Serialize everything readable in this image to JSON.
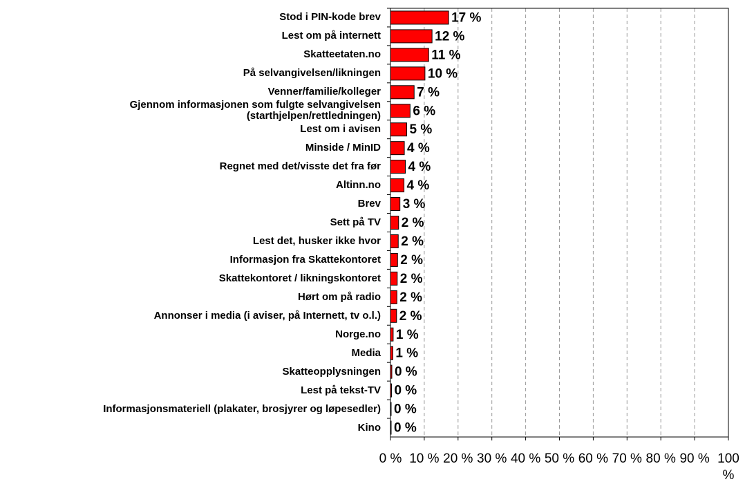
{
  "chart_data": {
    "type": "barh",
    "categories": [
      "Stod i PIN-kode brev",
      "Lest om på internett",
      "Skatteetaten.no",
      "På selvangivelsen/likningen",
      "Venner/familie/kolleger",
      "Gjennom informasjonen som fulgte selvangivelsen (starthjelpen/rettledningen)",
      "Lest om i avisen",
      "Minside / MinID",
      "Regnet med det/visste det fra før",
      "Altinn.no",
      "Brev",
      "Sett på TV",
      "Lest det, husker ikke hvor",
      "Informasjon fra Skattekontoret",
      "Skattekontoret / likningskontoret",
      "Hørt om på radio",
      "Annonser i media (i aviser, på Internett, tv o.l.)",
      "Norge.no",
      "Media",
      "Skatteopplysningen",
      "Lest på tekst-TV",
      "Informasjonsmateriell (plakater, brosjyrer og løpesedler)",
      "Kino"
    ],
    "values": [
      17.2,
      12.3,
      11.3,
      10.2,
      7.0,
      5.8,
      4.8,
      4.1,
      4.4,
      4.0,
      2.8,
      2.4,
      2.3,
      2.1,
      2.0,
      1.9,
      1.8,
      0.8,
      0.7,
      0.4,
      0.3,
      0.2,
      0.2
    ],
    "value_labels": [
      "17 %",
      "12 %",
      "11 %",
      "10 %",
      "7 %",
      "6 %",
      "5 %",
      "4 %",
      "4 %",
      "4 %",
      "3 %",
      "2 %",
      "2 %",
      "2 %",
      "2 %",
      "2 %",
      "2 %",
      "1 %",
      "1 %",
      "0 %",
      "0 %",
      "0 %",
      "0 %"
    ],
    "color": "#ff0000",
    "xlim": [
      0,
      100
    ],
    "xticks": [
      {
        "value": 0,
        "label": "0 %"
      },
      {
        "value": 10,
        "label": "10 %"
      },
      {
        "value": 20,
        "label": "20 %"
      },
      {
        "value": 30,
        "label": "30 %"
      },
      {
        "value": 40,
        "label": "40 %"
      },
      {
        "value": 50,
        "label": "50 %"
      },
      {
        "value": 60,
        "label": "60 %"
      },
      {
        "value": 70,
        "label": "70 %"
      },
      {
        "value": 80,
        "label": "80 %"
      },
      {
        "value": 90,
        "label": "90 %"
      },
      {
        "value": 100,
        "label": "100 %"
      }
    ],
    "grid": true
  }
}
